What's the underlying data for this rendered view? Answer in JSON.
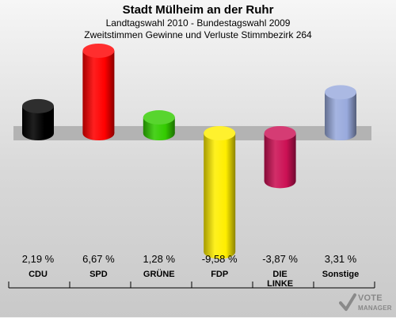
{
  "header": {
    "title": "Stadt Mülheim an der Ruhr",
    "subtitle1": "Landtagswahl 2010 - Bundestagswahl 2009",
    "subtitle2": "Zweitstimmen Gewinne und Verluste Stimmbezirk 264"
  },
  "chart_data": {
    "type": "bar",
    "title": "Stadt Mülheim an der Ruhr",
    "subtitle": "Landtagswahl 2010 - Bundestagswahl 2009 / Zweitstimmen Gewinne und Verluste Stimmbezirk 264",
    "categories": [
      "CDU",
      "SPD",
      "GRÜNE",
      "FDP",
      "DIE LINKE",
      "Sonstige"
    ],
    "category_lines": [
      [
        "CDU"
      ],
      [
        "SPD"
      ],
      [
        "GRÜNE"
      ],
      [
        "FDP"
      ],
      [
        "DIE",
        "LINKE"
      ],
      [
        "Sonstige"
      ]
    ],
    "values": [
      2.19,
      6.67,
      1.28,
      -9.58,
      -3.87,
      3.31
    ],
    "value_labels": [
      "2,19 %",
      "6,67 %",
      "1,28 %",
      "-9,58 %",
      "-3,87 %",
      "3,31 %"
    ],
    "colors": [
      "#000000",
      "#ff0000",
      "#33cc00",
      "#ffee00",
      "#cc1155",
      "#99aadd"
    ],
    "ylim": [
      -10,
      7
    ],
    "legend": "none",
    "grid": false
  },
  "logo": {
    "line1": "VOTE",
    "line2": "MANAGER"
  }
}
